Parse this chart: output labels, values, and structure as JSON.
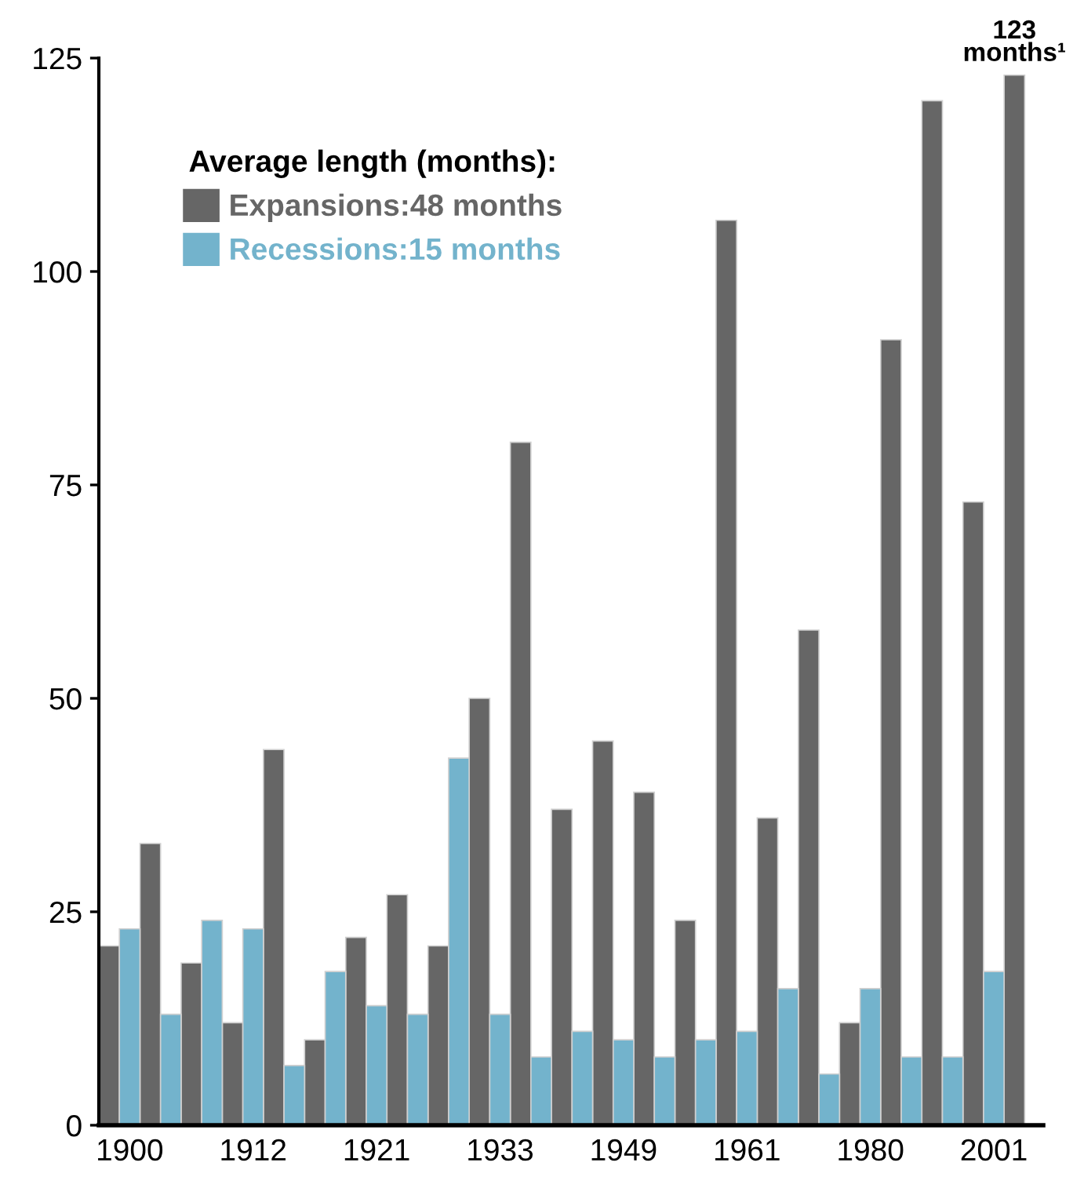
{
  "chart_data": {
    "type": "bar",
    "stacked": true,
    "legend": "top left",
    "legend_title": "Average length (months):",
    "categories": [
      null,
      "1900",
      null,
      null,
      null,
      null,
      null,
      "1912",
      null,
      null,
      null,
      null,
      null,
      "1921",
      null,
      null,
      null,
      null,
      null,
      "1933",
      null,
      null,
      null,
      null,
      null,
      "1949",
      null,
      null,
      null,
      null,
      null,
      "1961",
      null,
      null,
      null,
      null,
      null,
      "1980",
      null,
      null,
      null,
      null,
      null,
      "2001",
      null
    ],
    "series": [
      {
        "name": "Expansions:48 months",
        "color": "#666666",
        "values": [
          21,
          null,
          33,
          null,
          19,
          null,
          12,
          null,
          44,
          null,
          10,
          null,
          22,
          null,
          27,
          null,
          21,
          null,
          50,
          null,
          80,
          null,
          37,
          null,
          45,
          null,
          39,
          null,
          24,
          null,
          106,
          null,
          36,
          null,
          58,
          null,
          12,
          null,
          92,
          null,
          120,
          null,
          73,
          null,
          123
        ]
      },
      {
        "name": "Recessions:15 months",
        "color": "#73b3cc",
        "values": [
          null,
          23,
          null,
          13,
          null,
          24,
          null,
          23,
          null,
          7,
          null,
          18,
          null,
          14,
          null,
          13,
          null,
          43,
          null,
          13,
          null,
          8,
          null,
          11,
          null,
          10,
          null,
          8,
          null,
          10,
          null,
          11,
          null,
          16,
          null,
          6,
          null,
          16,
          null,
          8,
          null,
          8,
          null,
          18,
          null
        ]
      }
    ],
    "ylim": [
      0,
      125
    ],
    "yticks": [
      0,
      25,
      50,
      75,
      100,
      125
    ],
    "grid": false,
    "annotations": [
      "123\nmonths¹"
    ]
  }
}
